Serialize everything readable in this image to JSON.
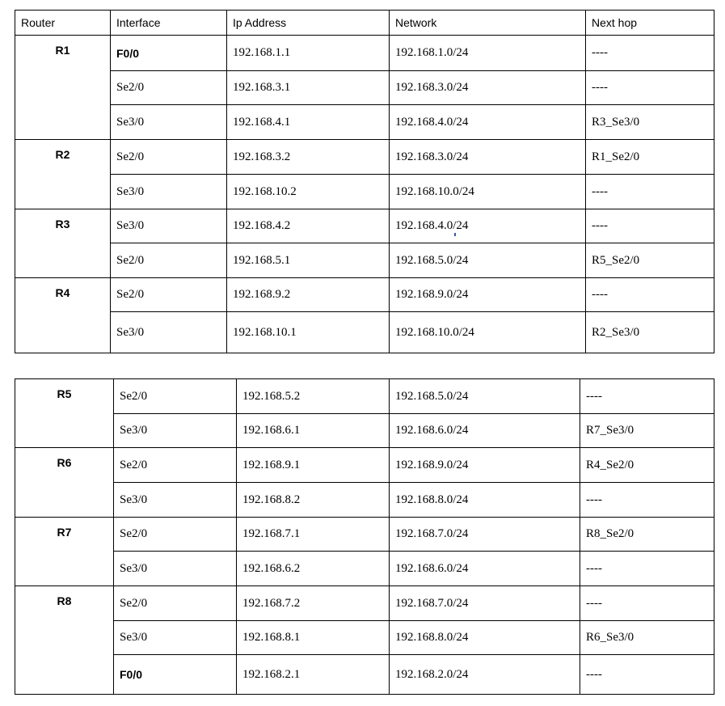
{
  "header": {
    "router": "Router",
    "interface": "Interface",
    "ip_address": "Ip Address",
    "network": "Network",
    "next_hop": "Next hop"
  },
  "colors": {
    "orange": "#ed7d31",
    "blue": "#4472c4",
    "pink": "#ff33cc",
    "red": "#ff0000",
    "gray": "#7f7f7f",
    "green": "#70ad47",
    "cyan": "#00b0f0",
    "purple": "#7030a0"
  },
  "table1": [
    {
      "router": "R1",
      "rows": [
        {
          "iface": "F0/0",
          "ip": "192.168.1.1",
          "network": "192.168.1.0/24",
          "next_hop": "----",
          "color": "black"
        },
        {
          "iface": "Se2/0",
          "ip": "192.168.3.1",
          "network": "192.168.3.0/24",
          "next_hop": "----",
          "color": "orange"
        },
        {
          "iface": "Se3/0",
          "ip": "192.168.4.1",
          "network": "192.168.4.0/24",
          "next_hop": "R3_Se3/0",
          "color": "blue"
        }
      ]
    },
    {
      "router": "R2",
      "rows": [
        {
          "iface": "Se2/0",
          "ip": "192.168.3.2",
          "network": "192.168.3.0/24",
          "next_hop": "R1_Se2/0",
          "color": "orange"
        },
        {
          "iface": "Se3/0",
          "ip": "192.168.10.2",
          "network": "192.168.10.0/24",
          "next_hop": "----",
          "color": "pink"
        }
      ]
    },
    {
      "router": "R3",
      "rows": [
        {
          "iface": "Se3/0",
          "ip": "192.168.4.2",
          "network": "192.168.4.0/24",
          "next_hop": "----",
          "color": "blue"
        },
        {
          "iface": "Se2/0",
          "ip": "192.168.5.1",
          "network": "192.168.5.0/24",
          "next_hop": "R5_Se2/0",
          "color": "red"
        }
      ]
    },
    {
      "router": "R4",
      "rows": [
        {
          "iface": "Se2/0",
          "ip": "192.168.9.2",
          "network": "192.168.9.0/24",
          "next_hop": "----",
          "color": "gray"
        },
        {
          "iface": "Se3/0",
          "ip": "192.168.10.1",
          "network": "192.168.10.0/24",
          "next_hop": "R2_Se3/0",
          "color": "pink"
        }
      ]
    }
  ],
  "table2": [
    {
      "router": "R5",
      "rows": [
        {
          "iface": "Se2/0",
          "ip": "192.168.5.2",
          "network": "192.168.5.0/24",
          "next_hop": "----",
          "color": "red"
        },
        {
          "iface": "Se3/0",
          "ip": "192.168.6.1",
          "network": "192.168.6.0/24",
          "next_hop": "R7_Se3/0",
          "color": "green"
        }
      ]
    },
    {
      "router": "R6",
      "rows": [
        {
          "iface": "Se2/0",
          "ip": "192.168.9.1",
          "network": "192.168.9.0/24",
          "next_hop": "R4_Se2/0",
          "color": "gray"
        },
        {
          "iface": "Se3/0",
          "ip": "192.168.8.2",
          "network": "192.168.8.0/24",
          "next_hop": "----",
          "color": "cyan"
        }
      ]
    },
    {
      "router": "R7",
      "rows": [
        {
          "iface": "Se2/0",
          "ip": "192.168.7.1",
          "network": "192.168.7.0/24",
          "next_hop": "R8_Se2/0",
          "color": "purple"
        },
        {
          "iface": "Se3/0",
          "ip": "192.168.6.2",
          "network": "192.168.6.0/24",
          "next_hop": "----",
          "color": "green"
        }
      ]
    },
    {
      "router": "R8",
      "rows": [
        {
          "iface": "Se2/0",
          "ip": "192.168.7.2",
          "network": "192.168.7.0/24",
          "next_hop": "----",
          "color": "purple"
        },
        {
          "iface": "Se3/0",
          "ip": "192.168.8.1",
          "network": "192.168.8.0/24",
          "next_hop": "R6_Se3/0",
          "color": "cyan"
        },
        {
          "iface": "F0/0",
          "ip": "192.168.2.1",
          "network": "192.168.2.0/24",
          "next_hop": "----",
          "color": "black"
        }
      ]
    }
  ]
}
